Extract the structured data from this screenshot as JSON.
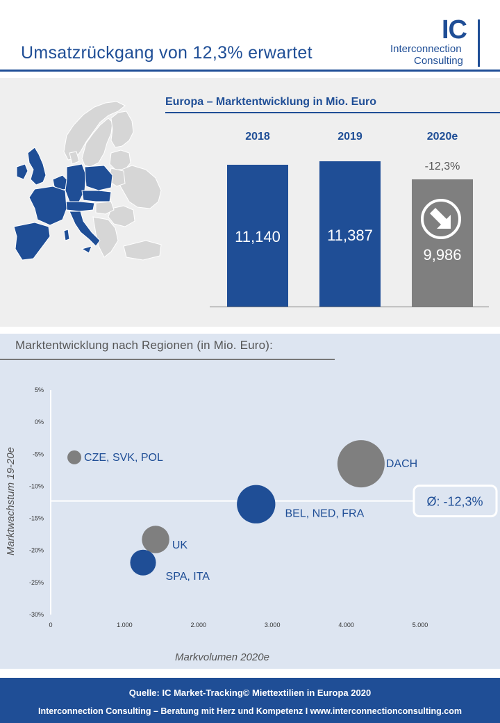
{
  "header": {
    "title": "Umsatzrückgang von 12,3% erwartet",
    "logo_mark": "IC",
    "logo_line1": "Interconnection",
    "logo_line2": "Consulting"
  },
  "europe_panel": {
    "title": "Europa – Marktentwicklung in Mio. Euro",
    "change_label": "-12,3%",
    "decline_icon": "arrow-down-right-icon"
  },
  "regions_panel": {
    "title": "Marktentwicklung  nach Regionen  (in Mio. Euro):",
    "average_label": "Ø: -12,3%"
  },
  "footer": {
    "source": "Quelle: IC Market-Tracking© Miettextilien in Europa 2020",
    "tagline": "Interconnection Consulting – Beratung mit Herz und Kompetenz  I  www.interconnectionconsulting.com"
  },
  "colors": {
    "brand_blue": "#1f4e96",
    "gray": "#7f7f7f",
    "map_gray": "#d6d6d6",
    "panel_gray": "#efefef",
    "panel_blue": "#dde5f1"
  },
  "chart_data": [
    {
      "type": "bar",
      "title": "Europa – Marktentwicklung in Mio. Euro",
      "categories": [
        "2018",
        "2019",
        "2020e"
      ],
      "values": [
        11140,
        11387,
        9986
      ],
      "value_labels": [
        "11,140",
        "11,387",
        "9,986"
      ],
      "colors": [
        "#1f4e96",
        "#1f4e96",
        "#7f7f7f"
      ],
      "ylim": [
        0,
        12000
      ],
      "annotations": [
        "-12,3%"
      ]
    },
    {
      "type": "scatter",
      "xlabel": "Markvolumen 2020e",
      "ylabel": "Marktwachstum 19-20e",
      "xlim": [
        0,
        6000
      ],
      "ylim": [
        -30,
        5
      ],
      "xticks": [
        0,
        1000,
        2000,
        3000,
        4000,
        5000
      ],
      "xtick_labels": [
        "0",
        "1.000",
        "2.000",
        "3.000",
        "4.000",
        "5.000"
      ],
      "yticks": [
        5,
        0,
        -5,
        -10,
        -15,
        -20,
        -25,
        -30
      ],
      "ytick_labels": [
        "5%",
        "0%",
        "-5%",
        "-10%",
        "-15%",
        "-20%",
        "-25%",
        "-30%"
      ],
      "reference_line_y": -12.3,
      "reference_label": "Ø: -12,3%",
      "points": [
        {
          "label": "CZE, SVK, POL",
          "x": 320,
          "y": -5.5,
          "size": 320,
          "color": "#7f7f7f"
        },
        {
          "label": "DACH",
          "x": 4200,
          "y": -6.5,
          "size": 4200,
          "color": "#7f7f7f"
        },
        {
          "label": "BEL, NED, FRA",
          "x": 2780,
          "y": -12.8,
          "size": 2780,
          "color": "#1f4e96"
        },
        {
          "label": "UK",
          "x": 1420,
          "y": -18.3,
          "size": 1420,
          "color": "#7f7f7f"
        },
        {
          "label": "SPA, ITA",
          "x": 1250,
          "y": -21.9,
          "size": 1250,
          "color": "#1f4e96"
        }
      ]
    }
  ]
}
